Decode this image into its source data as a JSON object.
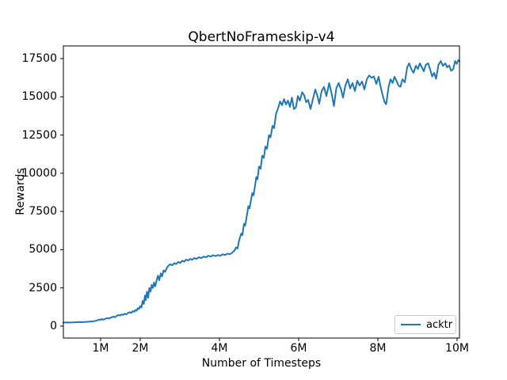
{
  "window": {
    "background": "#ffffff"
  },
  "chart_data": {
    "type": "line",
    "title": "QbertNoFrameskip-v4",
    "xlabel": "Number of Timesteps",
    "ylabel": "Rewards",
    "x_unit": "millions of timesteps",
    "xlim": [
      0.06,
      10.06
    ],
    "ylim": [
      -780,
      18330
    ],
    "grid": false,
    "xticks": [
      {
        "value": 1,
        "label": "1M"
      },
      {
        "value": 2,
        "label": "2M"
      },
      {
        "value": 4,
        "label": "4M"
      },
      {
        "value": 6,
        "label": "6M"
      },
      {
        "value": 8,
        "label": "8M"
      },
      {
        "value": 10,
        "label": "10M"
      }
    ],
    "yticks": [
      {
        "value": 0,
        "label": "0"
      },
      {
        "value": 2500,
        "label": "2500"
      },
      {
        "value": 5000,
        "label": "5000"
      },
      {
        "value": 7500,
        "label": "7500"
      },
      {
        "value": 10000,
        "label": "10000"
      },
      {
        "value": 12500,
        "label": "12500"
      },
      {
        "value": 15000,
        "label": "15000"
      },
      {
        "value": 17500,
        "label": "17500"
      }
    ],
    "legend": {
      "position": "lower right",
      "entries": [
        {
          "label": "acktr",
          "color": "#1f77b4"
        }
      ]
    },
    "series": [
      {
        "name": "acktr",
        "color": "#1f77b4",
        "points": [
          [
            0.06,
            230
          ],
          [
            0.15,
            240
          ],
          [
            0.25,
            235
          ],
          [
            0.35,
            250
          ],
          [
            0.45,
            265
          ],
          [
            0.55,
            260
          ],
          [
            0.65,
            280
          ],
          [
            0.75,
            300
          ],
          [
            0.85,
            330
          ],
          [
            0.92,
            380
          ],
          [
            0.97,
            430
          ],
          [
            1.0,
            410
          ],
          [
            1.03,
            470
          ],
          [
            1.07,
            420
          ],
          [
            1.12,
            480
          ],
          [
            1.17,
            530
          ],
          [
            1.22,
            500
          ],
          [
            1.27,
            570
          ],
          [
            1.32,
            620
          ],
          [
            1.36,
            580
          ],
          [
            1.41,
            670
          ],
          [
            1.45,
            730
          ],
          [
            1.49,
            690
          ],
          [
            1.53,
            770
          ],
          [
            1.57,
            730
          ],
          [
            1.61,
            810
          ],
          [
            1.65,
            770
          ],
          [
            1.69,
            860
          ],
          [
            1.73,
            910
          ],
          [
            1.77,
            860
          ],
          [
            1.81,
            980
          ],
          [
            1.85,
            940
          ],
          [
            1.88,
            1060
          ],
          [
            1.91,
            1010
          ],
          [
            1.94,
            1180
          ],
          [
            1.97,
            1120
          ],
          [
            2.0,
            1320
          ],
          [
            2.03,
            1220
          ],
          [
            2.06,
            1650
          ],
          [
            2.09,
            1450
          ],
          [
            2.12,
            2000
          ],
          [
            2.14,
            1700
          ],
          [
            2.17,
            2250
          ],
          [
            2.2,
            1850
          ],
          [
            2.23,
            2500
          ],
          [
            2.26,
            2250
          ],
          [
            2.29,
            2700
          ],
          [
            2.32,
            2500
          ],
          [
            2.35,
            2850
          ],
          [
            2.38,
            2600
          ],
          [
            2.42,
            3050
          ],
          [
            2.45,
            3300
          ],
          [
            2.48,
            3000
          ],
          [
            2.52,
            3450
          ],
          [
            2.55,
            3250
          ],
          [
            2.59,
            3650
          ],
          [
            2.63,
            3550
          ],
          [
            2.67,
            3800
          ],
          [
            2.71,
            3950
          ],
          [
            2.76,
            4050
          ],
          [
            2.81,
            3980
          ],
          [
            2.86,
            4120
          ],
          [
            2.91,
            4060
          ],
          [
            2.96,
            4200
          ],
          [
            3.01,
            4130
          ],
          [
            3.06,
            4280
          ],
          [
            3.11,
            4220
          ],
          [
            3.16,
            4350
          ],
          [
            3.21,
            4290
          ],
          [
            3.26,
            4400
          ],
          [
            3.31,
            4340
          ],
          [
            3.36,
            4450
          ],
          [
            3.42,
            4400
          ],
          [
            3.48,
            4500
          ],
          [
            3.54,
            4450
          ],
          [
            3.6,
            4550
          ],
          [
            3.66,
            4500
          ],
          [
            3.72,
            4600
          ],
          [
            3.78,
            4550
          ],
          [
            3.84,
            4640
          ],
          [
            3.9,
            4580
          ],
          [
            3.96,
            4650
          ],
          [
            4.02,
            4600
          ],
          [
            4.08,
            4700
          ],
          [
            4.14,
            4650
          ],
          [
            4.2,
            4740
          ],
          [
            4.26,
            4700
          ],
          [
            4.32,
            4800
          ],
          [
            4.38,
            4950
          ],
          [
            4.42,
            5150
          ],
          [
            4.46,
            5080
          ],
          [
            4.49,
            5550
          ],
          [
            4.52,
            5800
          ],
          [
            4.55,
            6050
          ],
          [
            4.58,
            5950
          ],
          [
            4.62,
            6700
          ],
          [
            4.65,
            6580
          ],
          [
            4.69,
            7200
          ],
          [
            4.73,
            7850
          ],
          [
            4.76,
            7700
          ],
          [
            4.8,
            8300
          ],
          [
            4.83,
            8700
          ],
          [
            4.86,
            8550
          ],
          [
            4.9,
            9200
          ],
          [
            4.93,
            9750
          ],
          [
            4.96,
            9600
          ],
          [
            5.0,
            10450
          ],
          [
            5.04,
            10300
          ],
          [
            5.08,
            11150
          ],
          [
            5.12,
            11000
          ],
          [
            5.16,
            11750
          ],
          [
            5.2,
            11600
          ],
          [
            5.25,
            12500
          ],
          [
            5.29,
            12350
          ],
          [
            5.34,
            13100
          ],
          [
            5.38,
            12950
          ],
          [
            5.43,
            13900
          ],
          [
            5.48,
            14250
          ],
          [
            5.53,
            14700
          ],
          [
            5.58,
            14450
          ],
          [
            5.63,
            14850
          ],
          [
            5.68,
            14500
          ],
          [
            5.73,
            14750
          ],
          [
            5.78,
            14350
          ],
          [
            5.83,
            14950
          ],
          [
            5.88,
            14200
          ],
          [
            5.93,
            14300
          ],
          [
            5.98,
            15050
          ],
          [
            6.03,
            14750
          ],
          [
            6.09,
            15300
          ],
          [
            6.14,
            15100
          ],
          [
            6.19,
            14650
          ],
          [
            6.24,
            14800
          ],
          [
            6.3,
            14200
          ],
          [
            6.36,
            14850
          ],
          [
            6.42,
            15480
          ],
          [
            6.47,
            15100
          ],
          [
            6.52,
            14550
          ],
          [
            6.58,
            15380
          ],
          [
            6.64,
            15640
          ],
          [
            6.7,
            15050
          ],
          [
            6.77,
            15900
          ],
          [
            6.83,
            15250
          ],
          [
            6.89,
            14400
          ],
          [
            6.95,
            15550
          ],
          [
            7.01,
            15900
          ],
          [
            7.07,
            15480
          ],
          [
            7.12,
            14950
          ],
          [
            7.18,
            15740
          ],
          [
            7.24,
            16150
          ],
          [
            7.3,
            15550
          ],
          [
            7.36,
            15900
          ],
          [
            7.42,
            15380
          ],
          [
            7.48,
            16050
          ],
          [
            7.54,
            15740
          ],
          [
            7.6,
            16000
          ],
          [
            7.66,
            15480
          ],
          [
            7.72,
            16150
          ],
          [
            7.78,
            16400
          ],
          [
            7.84,
            16250
          ],
          [
            7.9,
            16330
          ],
          [
            7.96,
            15850
          ],
          [
            8.02,
            16310
          ],
          [
            8.07,
            15640
          ],
          [
            8.12,
            15120
          ],
          [
            8.17,
            14650
          ],
          [
            8.21,
            14520
          ],
          [
            8.27,
            15640
          ],
          [
            8.32,
            16150
          ],
          [
            8.37,
            15900
          ],
          [
            8.42,
            16310
          ],
          [
            8.47,
            16050
          ],
          [
            8.52,
            15740
          ],
          [
            8.57,
            15660
          ],
          [
            8.62,
            16150
          ],
          [
            8.68,
            15950
          ],
          [
            8.74,
            16930
          ],
          [
            8.79,
            17190
          ],
          [
            8.85,
            16780
          ],
          [
            8.9,
            16570
          ],
          [
            8.96,
            17030
          ],
          [
            9.01,
            16830
          ],
          [
            9.06,
            17190
          ],
          [
            9.11,
            16930
          ],
          [
            9.16,
            16670
          ],
          [
            9.21,
            17090
          ],
          [
            9.27,
            17190
          ],
          [
            9.32,
            16780
          ],
          [
            9.37,
            16330
          ],
          [
            9.42,
            16570
          ],
          [
            9.47,
            16180
          ],
          [
            9.53,
            17090
          ],
          [
            9.59,
            17340
          ],
          [
            9.64,
            17030
          ],
          [
            9.7,
            17190
          ],
          [
            9.75,
            16930
          ],
          [
            9.8,
            17050
          ],
          [
            9.85,
            16700
          ],
          [
            9.9,
            16800
          ],
          [
            9.95,
            17340
          ],
          [
            9.99,
            17150
          ],
          [
            10.03,
            17400
          ],
          [
            10.06,
            17330
          ]
        ]
      }
    ]
  }
}
